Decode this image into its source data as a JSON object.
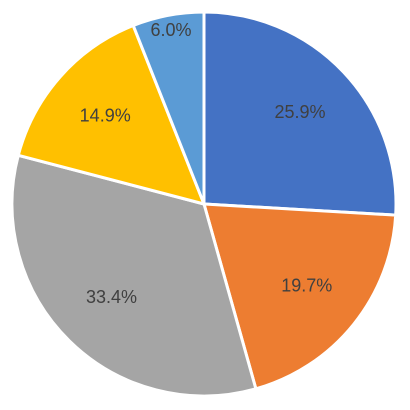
{
  "chart_data": {
    "type": "pie",
    "categories": [
      "",
      "",
      "",
      "",
      ""
    ],
    "values": [
      25.9,
      19.7,
      33.4,
      14.9,
      6.0
    ],
    "labels": [
      "25.9%",
      "19.7%",
      "33.4%",
      "14.9%",
      "6.0%"
    ],
    "colors": [
      "#4472C4",
      "#ED7D31",
      "#A5A5A5",
      "#FFC000",
      "#5B9BD5"
    ],
    "start": "12 o'clock",
    "direction": "clockwise",
    "legend": "none",
    "title": ""
  }
}
